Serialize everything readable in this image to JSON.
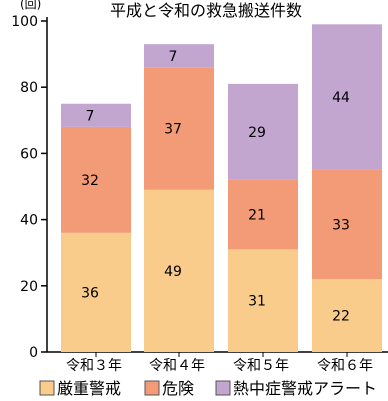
{
  "chart_data": {
    "type": "bar",
    "stacked": true,
    "title": "平成と令和の救急搬送件数",
    "unit_label": "(回)",
    "categories": [
      "令和３年",
      "令和４年",
      "令和５年",
      "令和６年"
    ],
    "ylim": [
      0,
      100
    ],
    "yticks": [
      0,
      20,
      40,
      60,
      80,
      100
    ],
    "series": [
      {
        "name": "厳重警戒",
        "color": "#f9cc8c",
        "values": [
          36,
          49,
          31,
          22
        ]
      },
      {
        "name": "危険",
        "color": "#f29b76",
        "values": [
          32,
          37,
          21,
          33
        ]
      },
      {
        "name": "熱中症警戒アラート",
        "color": "#c3a6d0",
        "values": [
          7,
          7,
          29,
          44
        ]
      }
    ],
    "legend_position": "bottom",
    "grid": false
  }
}
